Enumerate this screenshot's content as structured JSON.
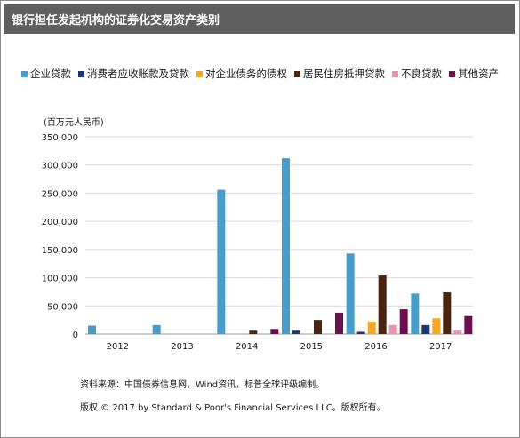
{
  "header": {
    "title": "银行担任发起机构的证券化交易资产类别"
  },
  "footer": {
    "source": "资料来源：中国债券信息网，Wind资讯，标普全球评级编制。",
    "copyright": "版权 © 2017 by Standard & Poor's Financial Services LLC。版权所有。"
  },
  "chart_data": {
    "type": "bar",
    "unit_label": "(百万元人民币)",
    "categories": [
      "2012",
      "2013",
      "2014",
      "2015",
      "2016",
      "2017"
    ],
    "ylim": [
      0,
      350000
    ],
    "yticks": [
      "0",
      "50,000",
      "100,000",
      "150,000",
      "200,000",
      "250,000",
      "300,000",
      "350,000"
    ],
    "grid": true,
    "legend_position": "top",
    "series": [
      {
        "name": "企业贷款",
        "color": "#4a9cc8",
        "values": [
          15000,
          16000,
          256000,
          312000,
          143000,
          72000
        ]
      },
      {
        "name": "消费者应收账款及贷款",
        "color": "#1b3a6b",
        "values": [
          0,
          0,
          0,
          6000,
          4000,
          16000
        ]
      },
      {
        "name": "对企业债务的债权",
        "color": "#f5a623",
        "values": [
          0,
          0,
          0,
          0,
          22000,
          28000
        ]
      },
      {
        "name": "居民住房抵押贷款",
        "color": "#4a2413",
        "values": [
          0,
          0,
          6000,
          25000,
          104000,
          74000
        ]
      },
      {
        "name": "不良贷款",
        "color": "#e693b0",
        "values": [
          0,
          0,
          0,
          0,
          16000,
          6000
        ]
      },
      {
        "name": "其他资产",
        "color": "#6b0f4f",
        "values": [
          0,
          0,
          9000,
          38000,
          44000,
          32000
        ]
      }
    ]
  }
}
